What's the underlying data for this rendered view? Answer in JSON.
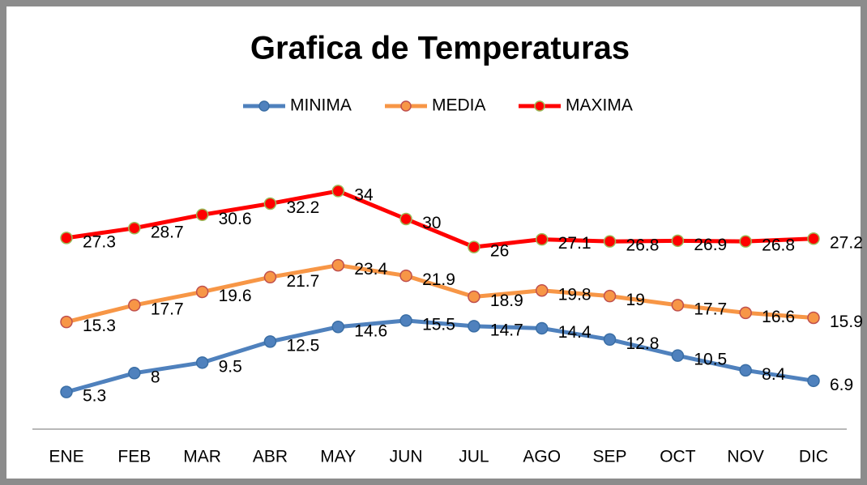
{
  "chart_data": {
    "type": "line",
    "title": "Grafica de Temperaturas",
    "categories": [
      "ENE",
      "FEB",
      "MAR",
      "ABR",
      "MAY",
      "JUN",
      "JUL",
      "AGO",
      "SEP",
      "OCT",
      "NOV",
      "DIC"
    ],
    "series": [
      {
        "name": "MINIMA",
        "color": "#4f81bd",
        "values": [
          5.3,
          8,
          9.5,
          12.5,
          14.6,
          15.5,
          14.7,
          14.4,
          12.8,
          10.5,
          8.4,
          6.9
        ]
      },
      {
        "name": "MEDIA",
        "color": "#f79646",
        "values": [
          15.3,
          17.7,
          19.6,
          21.7,
          23.4,
          21.9,
          18.9,
          19.8,
          19,
          17.7,
          16.6,
          15.9
        ]
      },
      {
        "name": "MAXIMA",
        "color": "#ff0000",
        "values": [
          27.3,
          28.7,
          30.6,
          32.2,
          34,
          30,
          26,
          27.1,
          26.8,
          26.9,
          26.8,
          27.2
        ]
      }
    ],
    "ylim": [
      0,
      40
    ],
    "legend": "top"
  }
}
